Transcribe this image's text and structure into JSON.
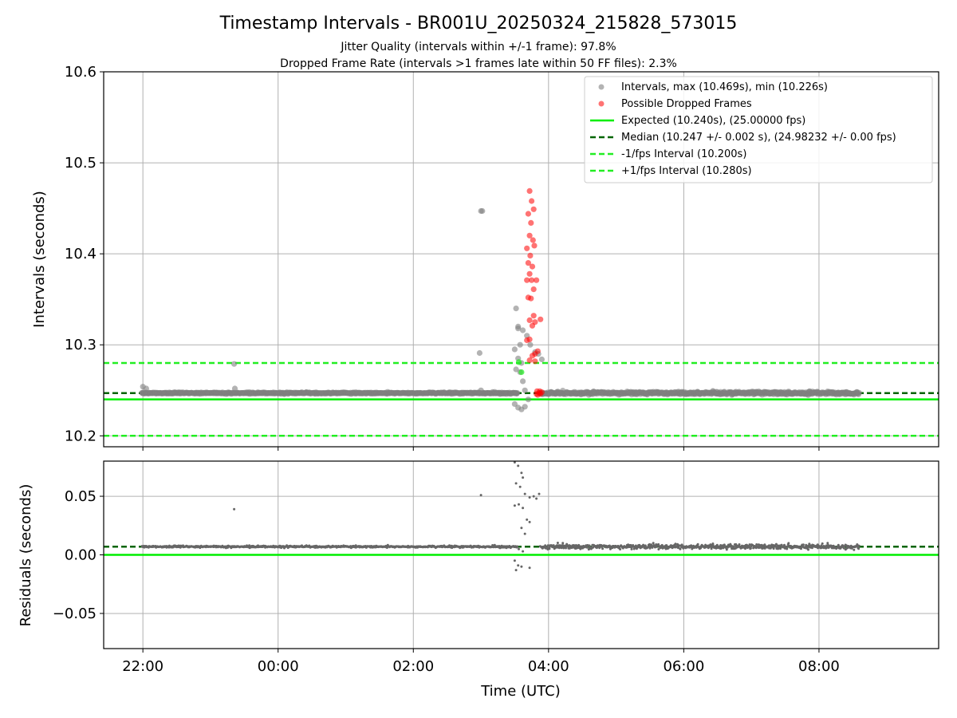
{
  "chart_data": {
    "type": "scatter",
    "title": "Timestamp Intervals - BR001U_20250324_215828_573015",
    "subtitles": [
      "Jitter Quality (intervals within +/-1 frame): 97.8%",
      "Dropped Frame Rate (intervals >1 frames late within 50 FF files): 2.3%"
    ],
    "xlabel": "Time (UTC)",
    "x_tick_labels": [
      "22:00",
      "00:00",
      "02:00",
      "04:00",
      "06:00",
      "08:00"
    ],
    "x_tick_hours": [
      22,
      24,
      26,
      28,
      30,
      32
    ],
    "xlim_hours": [
      21.42,
      33.77
    ],
    "top_panel": {
      "ylabel": "Intervals (seconds)",
      "ylim": [
        10.188,
        10.6
      ],
      "y_ticks": [
        10.2,
        10.3,
        10.4,
        10.5,
        10.6
      ],
      "y_tick_labels": [
        "10.2",
        "10.3",
        "10.4",
        "10.5",
        "10.6"
      ],
      "grid": true,
      "legend_position": "top-right",
      "legend": [
        "Intervals, max (10.469s), min (10.226s)",
        "Possible Dropped Frames",
        "Expected (10.240s), (25.00000 fps)",
        "Median (10.247 +/- 0.002 s), (24.98232 +/- 0.00 fps)",
        "-1/fps Interval (10.200s)",
        "+1/fps Interval (10.280s)"
      ],
      "lines": {
        "expected": 10.24,
        "median": 10.247,
        "minus_one_fps": 10.2,
        "plus_one_fps": 10.28
      },
      "gray_outliers": [
        [
          22.0,
          10.254
        ],
        [
          22.05,
          10.252
        ],
        [
          23.35,
          10.279
        ],
        [
          23.36,
          10.252
        ],
        [
          27.0,
          10.447
        ],
        [
          27.02,
          10.447
        ],
        [
          26.98,
          10.291
        ],
        [
          27.0,
          10.25
        ],
        [
          27.52,
          10.34
        ],
        [
          27.55,
          10.32
        ],
        [
          27.5,
          10.295
        ],
        [
          27.58,
          10.3
        ],
        [
          27.55,
          10.285
        ],
        [
          27.6,
          10.28
        ],
        [
          27.52,
          10.273
        ],
        [
          27.58,
          10.27
        ],
        [
          27.5,
          10.235
        ],
        [
          27.55,
          10.231
        ],
        [
          27.6,
          10.229
        ],
        [
          27.65,
          10.232
        ],
        [
          27.7,
          10.24
        ],
        [
          27.62,
          10.26
        ],
        [
          27.65,
          10.25
        ],
        [
          27.68,
          10.31
        ],
        [
          27.73,
          10.3
        ],
        [
          27.8,
          10.292
        ],
        [
          27.85,
          10.29
        ],
        [
          27.9,
          10.284
        ],
        [
          27.55,
          10.318
        ],
        [
          27.62,
          10.316
        ]
      ],
      "dropped_frames": [
        [
          27.72,
          10.469
        ],
        [
          27.75,
          10.458
        ],
        [
          27.78,
          10.449
        ],
        [
          27.7,
          10.444
        ],
        [
          27.74,
          10.434
        ],
        [
          27.72,
          10.42
        ],
        [
          27.77,
          10.415
        ],
        [
          27.79,
          10.409
        ],
        [
          27.68,
          10.406
        ],
        [
          27.73,
          10.398
        ],
        [
          27.7,
          10.39
        ],
        [
          27.76,
          10.386
        ],
        [
          27.72,
          10.378
        ],
        [
          27.75,
          10.371
        ],
        [
          27.68,
          10.371
        ],
        [
          27.82,
          10.371
        ],
        [
          27.78,
          10.361
        ],
        [
          27.7,
          10.352
        ],
        [
          27.74,
          10.351
        ],
        [
          27.88,
          10.328
        ],
        [
          27.72,
          10.327
        ],
        [
          27.78,
          10.332
        ],
        [
          27.8,
          10.325
        ],
        [
          27.76,
          10.321
        ],
        [
          27.68,
          10.305
        ],
        [
          27.72,
          10.306
        ],
        [
          27.8,
          10.29
        ],
        [
          27.84,
          10.293
        ],
        [
          27.76,
          10.288
        ],
        [
          27.72,
          10.283
        ],
        [
          27.8,
          10.282
        ],
        [
          27.83,
          10.249
        ],
        [
          27.86,
          10.247
        ],
        [
          27.88,
          10.246
        ],
        [
          27.9,
          10.248
        ],
        [
          27.84,
          10.245
        ],
        [
          27.87,
          10.249
        ],
        [
          27.82,
          10.246
        ]
      ]
    },
    "bottom_panel": {
      "ylabel": "Residuals (seconds)",
      "ylim": [
        -0.08,
        0.08
      ],
      "y_ticks": [
        -0.05,
        0.0,
        0.05
      ],
      "y_tick_labels": [
        "−0.05",
        "0.00",
        "0.05"
      ],
      "grid": true,
      "lines": {
        "zero": 0.0,
        "median_residual": 0.007
      },
      "outliers": [
        [
          23.35,
          0.039
        ],
        [
          27.0,
          0.051
        ],
        [
          27.5,
          0.079
        ],
        [
          27.55,
          0.076
        ],
        [
          27.6,
          0.07
        ],
        [
          27.62,
          0.066
        ],
        [
          27.52,
          0.061
        ],
        [
          27.58,
          0.058
        ],
        [
          27.65,
          0.052
        ],
        [
          27.72,
          0.049
        ],
        [
          27.78,
          0.05
        ],
        [
          27.82,
          0.048
        ],
        [
          27.86,
          0.052
        ],
        [
          27.5,
          0.042
        ],
        [
          27.56,
          0.043
        ],
        [
          27.62,
          0.04
        ],
        [
          27.68,
          0.03
        ],
        [
          27.72,
          0.028
        ],
        [
          27.6,
          0.023
        ],
        [
          27.65,
          0.018
        ],
        [
          27.5,
          -0.005
        ],
        [
          27.55,
          -0.009
        ],
        [
          27.52,
          -0.013
        ],
        [
          27.6,
          -0.01
        ],
        [
          27.72,
          -0.011
        ],
        [
          27.56,
          0.005
        ],
        [
          27.62,
          0.003
        ]
      ]
    },
    "series_colors": {
      "intervals": "#808080",
      "dropped": "#ff0000",
      "expected": "#00ee00",
      "median": "#006400",
      "fps_bounds": "#22ee22",
      "residuals": "#666666"
    }
  }
}
